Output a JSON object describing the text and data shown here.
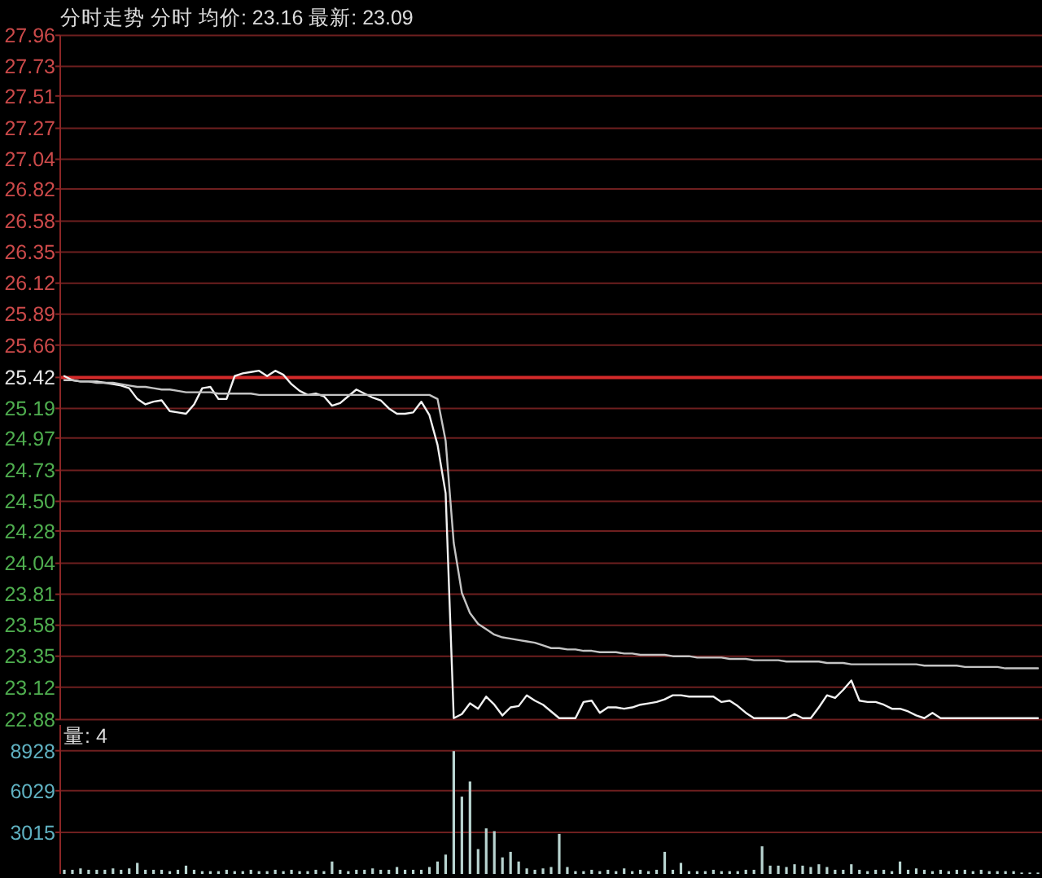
{
  "chart_data": [
    {
      "type": "line",
      "title": "分时走势  分时 均价: 23.16 最新: 23.09",
      "categories": [
        null,
        null,
        null,
        null,
        null,
        null,
        null,
        null,
        null,
        null,
        null,
        null,
        null,
        null,
        null,
        null,
        null,
        null,
        null,
        null,
        null,
        null,
        null,
        null,
        null,
        null,
        null,
        null,
        null,
        null,
        null,
        null,
        null,
        null,
        null,
        null,
        null,
        null,
        null,
        null,
        null,
        null,
        null,
        null,
        null,
        null,
        null,
        null,
        null,
        null,
        null,
        null,
        null,
        null,
        null,
        null,
        null,
        null,
        null,
        null,
        null,
        null,
        null,
        null,
        null,
        null,
        null,
        null,
        null,
        null,
        null,
        null,
        null,
        null,
        null,
        null,
        null,
        null,
        null,
        null,
        null,
        null,
        null,
        null,
        null,
        null,
        null,
        null,
        null,
        null,
        null,
        null,
        null,
        null,
        null,
        null,
        null,
        null,
        null,
        null,
        null,
        null,
        null,
        null,
        null,
        null,
        null,
        null,
        null,
        null,
        null,
        null,
        null,
        null,
        null,
        null,
        null,
        null,
        null,
        null,
        null
      ],
      "series": [
        {
          "color": "#f2f2f2",
          "values": [
            25.43,
            25.4,
            25.39,
            25.39,
            25.39,
            25.38,
            25.37,
            25.36,
            25.34,
            25.26,
            25.22,
            25.24,
            25.25,
            25.17,
            25.16,
            25.15,
            25.22,
            25.34,
            25.35,
            25.26,
            25.26,
            25.43,
            25.45,
            25.46,
            25.47,
            25.43,
            25.47,
            25.44,
            25.37,
            25.32,
            25.29,
            25.3,
            25.28,
            25.21,
            25.23,
            25.28,
            25.33,
            25.3,
            25.27,
            25.25,
            25.19,
            25.15,
            25.15,
            25.16,
            25.24,
            25.14,
            24.92,
            24.56,
            22.89,
            22.92,
            23.0,
            22.96,
            23.05,
            22.99,
            22.91,
            22.97,
            22.98,
            23.06,
            23.02,
            22.99,
            22.94,
            22.89,
            22.89,
            22.89,
            23.01,
            23.02,
            22.93,
            22.97,
            22.97,
            22.96,
            22.97,
            22.99,
            23.0,
            23.01,
            23.03,
            23.06,
            23.06,
            23.05,
            23.05,
            23.05,
            23.05,
            23.01,
            23.02,
            22.98,
            22.93,
            22.89,
            22.89,
            22.89,
            22.89,
            22.89,
            22.92,
            22.89,
            22.89,
            22.97,
            23.06,
            23.04,
            23.1,
            23.17,
            23.02,
            23.01,
            23.01,
            22.99,
            22.96,
            22.96,
            22.94,
            22.91,
            22.89,
            22.93,
            22.89,
            22.89,
            22.89,
            22.89,
            22.89,
            22.89,
            22.89,
            22.89,
            22.89,
            22.89,
            22.89,
            22.89,
            22.89
          ]
        },
        {
          "color": "#c4c4c4",
          "values": [
            25.4,
            25.4,
            25.39,
            25.39,
            25.38,
            25.38,
            25.38,
            25.37,
            25.36,
            25.35,
            25.35,
            25.34,
            25.33,
            25.33,
            25.32,
            25.31,
            25.31,
            25.31,
            25.31,
            25.3,
            25.3,
            25.3,
            25.3,
            25.3,
            25.29,
            25.29,
            25.29,
            25.29,
            25.29,
            25.29,
            25.29,
            25.29,
            25.29,
            25.29,
            25.29,
            25.29,
            25.29,
            25.29,
            25.29,
            25.29,
            25.29,
            25.29,
            25.29,
            25.29,
            25.29,
            25.29,
            25.26,
            24.95,
            24.19,
            23.82,
            23.67,
            23.59,
            23.55,
            23.51,
            23.49,
            23.48,
            23.47,
            23.46,
            23.45,
            23.43,
            23.41,
            23.41,
            23.4,
            23.4,
            23.39,
            23.39,
            23.38,
            23.38,
            23.38,
            23.37,
            23.37,
            23.36,
            23.36,
            23.36,
            23.36,
            23.35,
            23.35,
            23.35,
            23.34,
            23.34,
            23.34,
            23.34,
            23.33,
            23.33,
            23.33,
            23.32,
            23.32,
            23.32,
            23.32,
            23.31,
            23.31,
            23.31,
            23.31,
            23.31,
            23.3,
            23.3,
            23.3,
            23.29,
            23.29,
            23.29,
            23.29,
            23.29,
            23.29,
            23.29,
            23.29,
            23.29,
            23.28,
            23.28,
            23.28,
            23.28,
            23.28,
            23.27,
            23.27,
            23.27,
            23.27,
            23.27,
            23.26,
            23.26,
            23.26,
            23.26,
            23.26
          ]
        }
      ],
      "ylim": [
        22.88,
        27.96
      ],
      "yticks": [
        22.88,
        23.12,
        23.35,
        23.58,
        23.81,
        24.04,
        24.28,
        {
          "value": 24.5,
          "label": "24.50"
        },
        24.73,
        24.97,
        25.19,
        25.42,
        25.66,
        25.89,
        26.12,
        26.35,
        26.58,
        26.82,
        27.04,
        27.27,
        27.51,
        27.73,
        27.96
      ],
      "ref_lines": [
        {
          "axis": "y",
          "value": 25.42,
          "color": "#d42a2a"
        }
      ],
      "grid": "y",
      "tick_labels": "y"
    },
    {
      "type": "bar",
      "title": "量: 4",
      "categories": [
        null,
        null,
        null,
        null,
        null,
        null,
        null,
        null,
        null,
        null,
        null,
        null,
        null,
        null,
        null,
        null,
        null,
        null,
        null,
        null,
        null,
        null,
        null,
        null,
        null,
        null,
        null,
        null,
        null,
        null,
        null,
        null,
        null,
        null,
        null,
        null,
        null,
        null,
        null,
        null,
        null,
        null,
        null,
        null,
        null,
        null,
        null,
        null,
        null,
        null,
        null,
        null,
        null,
        null,
        null,
        null,
        null,
        null,
        null,
        null,
        null,
        null,
        null,
        null,
        null,
        null,
        null,
        null,
        null,
        null,
        null,
        null,
        null,
        null,
        null,
        null,
        null,
        null,
        null,
        null,
        null,
        null,
        null,
        null,
        null,
        null,
        null,
        null,
        null,
        null,
        null,
        null,
        null,
        null,
        null,
        null,
        null,
        null,
        null,
        null,
        null,
        null,
        null,
        null,
        null,
        null,
        null,
        null,
        null,
        null,
        null,
        null,
        null,
        null,
        null,
        null,
        null,
        null,
        null,
        null,
        null
      ],
      "values": [
        300,
        300,
        400,
        300,
        300,
        300,
        400,
        300,
        400,
        800,
        300,
        300,
        300,
        200,
        300,
        600,
        300,
        200,
        200,
        200,
        300,
        200,
        200,
        300,
        200,
        200,
        300,
        200,
        300,
        200,
        200,
        300,
        200,
        900,
        300,
        200,
        300,
        300,
        400,
        300,
        300,
        500,
        300,
        300,
        300,
        500,
        900,
        1400,
        8900,
        5600,
        6700,
        1800,
        3300,
        3100,
        1200,
        1600,
        900,
        400,
        300,
        400,
        500,
        2900,
        500,
        200,
        200,
        300,
        200,
        300,
        200,
        400,
        200,
        300,
        200,
        300,
        1600,
        300,
        800,
        200,
        200,
        200,
        300,
        200,
        200,
        200,
        300,
        300,
        2000,
        600,
        600,
        500,
        700,
        600,
        500,
        700,
        500,
        300,
        300,
        700,
        300,
        200,
        300,
        300,
        200,
        900,
        300,
        400,
        300,
        200,
        300,
        200,
        300,
        300,
        200,
        300,
        200,
        200,
        200,
        200,
        100,
        100,
        100
      ],
      "color": "#b8d4d0",
      "ylim": [
        0,
        10800
      ],
      "yticks": [
        3015,
        6029,
        8928
      ],
      "grid": "y",
      "tick_labels": "y"
    }
  ]
}
